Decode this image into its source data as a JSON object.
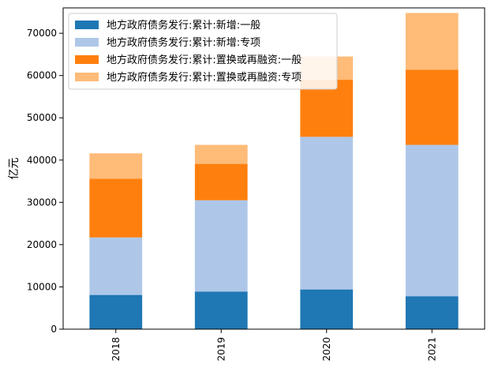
{
  "chart_data": {
    "type": "bar",
    "stacked": true,
    "categories": [
      "2018",
      "2019",
      "2020",
      "2021"
    ],
    "series": [
      {
        "name": "地方政府债务发行:累计:新增:一般",
        "color": "#1f77b4",
        "values": [
          8100,
          8900,
          9400,
          7800
        ]
      },
      {
        "name": "地方政府债务发行:累计:新增:专项",
        "color": "#aec7e8",
        "values": [
          13600,
          21600,
          36100,
          35800
        ]
      },
      {
        "name": "地方政府债务发行:累计:置换或再融资:一般",
        "color": "#ff7f0e",
        "values": [
          13900,
          8600,
          13500,
          17800
        ]
      },
      {
        "name": "地方政府债务发行:累计:置换或再融资:专项",
        "color": "#ffbb78",
        "values": [
          6000,
          4500,
          5500,
          13400
        ]
      }
    ],
    "xlabel": "",
    "ylabel": "亿元",
    "ylim": [
      0,
      76000
    ],
    "yticks": [
      0,
      10000,
      20000,
      30000,
      40000,
      50000,
      60000,
      70000
    ],
    "grid": false,
    "legend": "top-left"
  }
}
